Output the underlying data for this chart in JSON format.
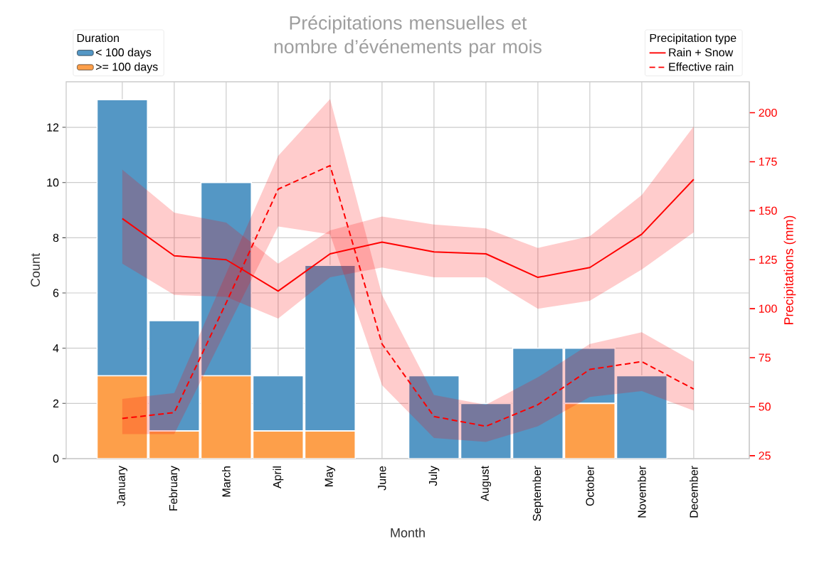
{
  "chart_data": {
    "type": "bar",
    "title": "Précipitations mensuelles et nombre d’événements par mois",
    "xlabel": "Month",
    "ylabel": "Count",
    "y2label": "Precipitations (mm)",
    "legend_title": [
      "Duration",
      "Precipitation type"
    ],
    "categories": [
      "January",
      "February",
      "March",
      "April",
      "May",
      "June",
      "July",
      "August",
      "September",
      "October",
      "November",
      "December"
    ],
    "stacked": true,
    "series": [
      {
        "name": ">= 100 days",
        "color": "#fd9f4a",
        "values": [
          3,
          1,
          3,
          1,
          1,
          0,
          0,
          0,
          0,
          2,
          0,
          0
        ]
      },
      {
        "name": "< 100 days",
        "color": "#5497c5",
        "values": [
          10,
          4,
          7,
          2,
          6,
          0,
          3,
          2,
          4,
          2,
          3,
          0
        ]
      },
      {
        "name": "Rain + Snow",
        "type": "line",
        "axis": "y2",
        "line_style": "solid",
        "color": "#ff0000",
        "values": [
          146,
          127,
          125,
          109,
          128,
          134,
          129,
          128,
          116,
          121,
          138,
          166
        ],
        "lower": [
          123,
          107,
          106,
          95,
          116,
          121,
          116,
          116,
          100,
          104,
          120,
          139
        ],
        "upper": [
          171,
          149,
          144,
          123,
          140,
          147,
          143,
          141,
          131,
          137,
          158,
          193
        ]
      },
      {
        "name": "Effective rain",
        "type": "line",
        "axis": "y2",
        "line_style": "dashed",
        "color": "#fe0000",
        "values": [
          44,
          47,
          103,
          161,
          173,
          82,
          45,
          40,
          51,
          69,
          73,
          59
        ],
        "lower": [
          36,
          36,
          89,
          142,
          138,
          61,
          34,
          32,
          40,
          55,
          58,
          48
        ],
        "upper": [
          54,
          57,
          118,
          178,
          207,
          107,
          56,
          51,
          65,
          82,
          88,
          73
        ]
      }
    ],
    "ylim": [
      0,
      13.65
    ],
    "yticks": [
      0,
      2,
      4,
      6,
      8,
      10,
      12
    ],
    "y2lim": [
      23.5,
      215.8
    ],
    "y2ticks": [
      25,
      50,
      75,
      100,
      125,
      150,
      175,
      200
    ],
    "grid": true,
    "legend": "top"
  }
}
